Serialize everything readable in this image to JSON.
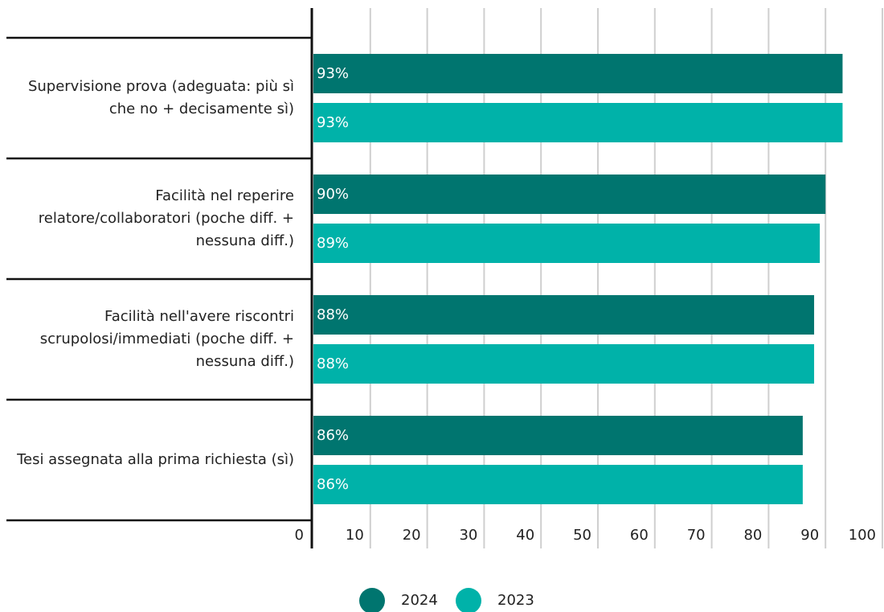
{
  "chart_data": {
    "type": "bar",
    "orientation": "horizontal",
    "categories": [
      "Supervisione prova (adeguata: più sì che no + decisamente sì)",
      "Facilità nel reperire relatore/collaboratori (poche diff. + nessuna diff.)",
      "Facilità nell'avere riscontri scrupolosi/immediati (poche diff. + nessuna diff.)",
      "Tesi assegnata alla prima richiesta (sì)"
    ],
    "series": [
      {
        "name": "2024",
        "color": "#00756f",
        "values": [
          93,
          90,
          88,
          86
        ],
        "value_labels": [
          "93%",
          "90%",
          "88%",
          "86%"
        ]
      },
      {
        "name": "2023",
        "color": "#00b2a9",
        "values": [
          93,
          89,
          88,
          86
        ],
        "value_labels": [
          "93%",
          "89%",
          "88%",
          "86%"
        ]
      }
    ],
    "xlim": [
      0,
      100
    ],
    "xticks": [
      0,
      10,
      20,
      30,
      40,
      50,
      60,
      70,
      80,
      90,
      100
    ],
    "grid": true,
    "legend": "bottom"
  }
}
